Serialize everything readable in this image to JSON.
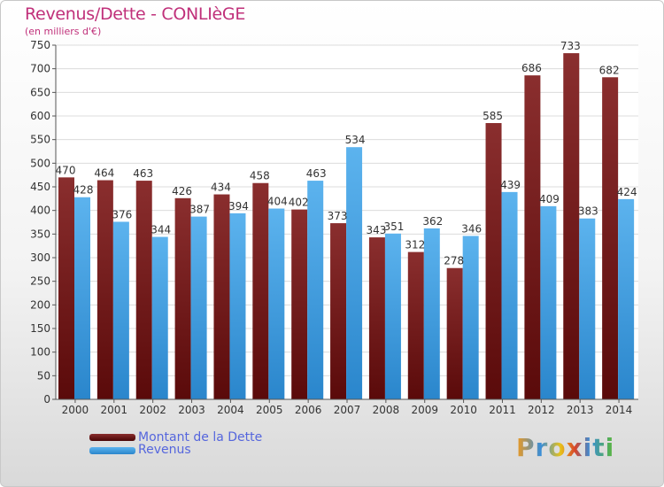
{
  "title": "Revenus/Dette - CONLIèGE",
  "subtitle": "(en milliers d'€)",
  "colors": {
    "dette": "#7a1c1c",
    "revenus": "#3f9fe0",
    "title": "#c0307a",
    "legend_text": "#5566dd"
  },
  "legend": {
    "dette_label": "Montant de la Dette",
    "revenus_label": "Revenus"
  },
  "logo": {
    "text": "Proxiti"
  },
  "chart_data": {
    "type": "bar",
    "title": "Revenus/Dette - CONLIèGE",
    "subtitle": "(en milliers d'€)",
    "categories": [
      "2000",
      "2001",
      "2002",
      "2003",
      "2004",
      "2005",
      "2006",
      "2007",
      "2008",
      "2009",
      "2010",
      "2011",
      "2012",
      "2013",
      "2014"
    ],
    "series": [
      {
        "name": "Montant de la Dette",
        "values": [
          470,
          464,
          463,
          426,
          434,
          458,
          402,
          373,
          343,
          312,
          278,
          585,
          686,
          733,
          682
        ]
      },
      {
        "name": "Revenus",
        "values": [
          428,
          376,
          344,
          387,
          394,
          404,
          463,
          534,
          351,
          362,
          346,
          439,
          409,
          383,
          424
        ]
      }
    ],
    "ylim": [
      0,
      750
    ],
    "yticks": [
      0,
      50,
      100,
      150,
      200,
      250,
      300,
      350,
      400,
      450,
      500,
      550,
      600,
      650,
      700,
      750
    ],
    "grid": true,
    "legend_position": "bottom-left"
  }
}
